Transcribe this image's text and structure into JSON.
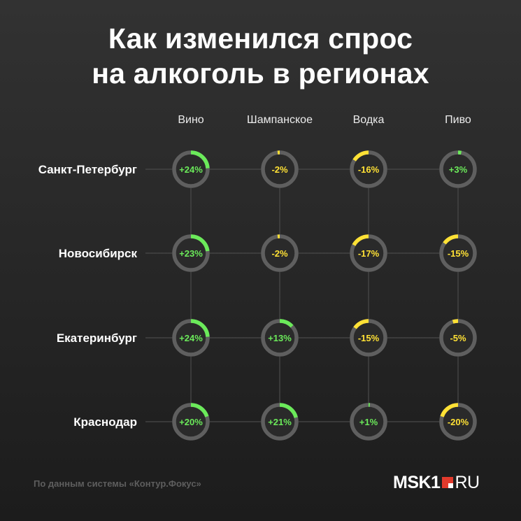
{
  "title_lines": [
    "Как изменился спрос",
    "на алкоголь в регионах"
  ],
  "source": "По данным системы «Контур.Фокус»",
  "logo": {
    "main": "MSK1",
    "suffix": "RU"
  },
  "colors": {
    "positive": "#6bea5a",
    "negative": "#ffe135",
    "ring_track": "#5f5f5f",
    "gridline": "#4a4a4a"
  },
  "chart_data": {
    "type": "table",
    "columns": [
      "Вино",
      "Шампанское",
      "Водка",
      "Пиво"
    ],
    "rows": [
      {
        "name": "Санкт-Петербург",
        "values": [
          24,
          -2,
          -16,
          3
        ],
        "labels": [
          "+24%",
          "-2%",
          "-16%",
          "+3%"
        ]
      },
      {
        "name": "Новосибирск",
        "values": [
          23,
          -2,
          -17,
          -15
        ],
        "labels": [
          "+23%",
          "-2%",
          "-17%",
          "-15%"
        ]
      },
      {
        "name": "Екатеринбург",
        "values": [
          24,
          13,
          -15,
          -5
        ],
        "labels": [
          "+24%",
          "+13%",
          "-15%",
          "-5%"
        ]
      },
      {
        "name": "Краснодар",
        "values": [
          20,
          21,
          1,
          -20
        ],
        "labels": [
          "+20%",
          "+21%",
          "+1%",
          "-20%"
        ]
      }
    ],
    "unit": "%",
    "grid": true
  }
}
